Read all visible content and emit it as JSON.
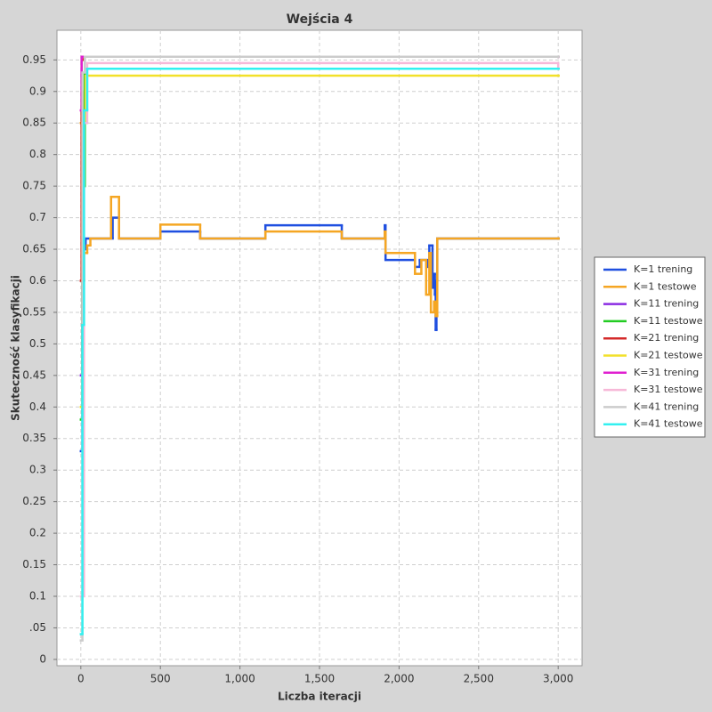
{
  "chart_data": {
    "type": "line",
    "step": true,
    "title": "Wejścia 4",
    "x_label": "Liczba iteracji",
    "y_label": "Skuteczność klasyfikacji",
    "xlim": [
      -150,
      3150
    ],
    "xticks": [
      0,
      500,
      {
        "value": 1000,
        "label": "1,000"
      },
      {
        "value": 1500,
        "label": "1,500"
      },
      {
        "value": 2000,
        "label": "2,000"
      },
      {
        "value": 2500,
        "label": "2,500"
      },
      {
        "value": 3000,
        "label": "3,000"
      }
    ],
    "ylim": [
      -0.01,
      0.997
    ],
    "yticks": [
      0,
      {
        "value": 0.05,
        "label": ".05"
      },
      0.1,
      0.15,
      0.2,
      0.25,
      0.3,
      0.35,
      0.4,
      0.45,
      0.5,
      0.55,
      0.6,
      0.65,
      0.7,
      0.75,
      0.8,
      0.85,
      0.9,
      0.95
    ],
    "grid": true,
    "legend": "right",
    "series": [
      {
        "name": "K=1 trening",
        "color": "#1f4fe0",
        "x": [
          0,
          10,
          20,
          30,
          200,
          240,
          500,
          750,
          1160,
          1640,
          1910,
          1915,
          2100,
          2130,
          2180,
          2190,
          2210,
          2220,
          2225,
          2230,
          2235,
          2240,
          3000
        ],
        "values": [
          0.33,
          0.6,
          0.65,
          0.667,
          0.7,
          0.667,
          0.678,
          0.667,
          0.688,
          0.667,
          0.688,
          0.633,
          0.622,
          0.633,
          0.622,
          0.656,
          0.589,
          0.611,
          0.578,
          0.522,
          0.6,
          0.667,
          0.667
        ]
      },
      {
        "name": "K=1 testowe",
        "color": "#f5a623",
        "x": [
          0,
          5,
          10,
          20,
          40,
          60,
          190,
          240,
          500,
          750,
          1160,
          1640,
          1910,
          1915,
          2100,
          2140,
          2170,
          2190,
          2200,
          2220,
          2230,
          2240,
          3000
        ],
        "values": [
          0.85,
          0.9,
          0.6,
          0.644,
          0.656,
          0.667,
          0.733,
          0.667,
          0.689,
          0.667,
          0.678,
          0.667,
          0.678,
          0.644,
          0.611,
          0.633,
          0.578,
          0.644,
          0.55,
          0.567,
          0.544,
          0.667,
          0.667
        ]
      },
      {
        "name": "K=11 trening",
        "color": "#8a2be2",
        "x": [
          0,
          10,
          25,
          3000
        ],
        "values": [
          0.45,
          0.85,
          0.955,
          0.955
        ]
      },
      {
        "name": "K=11 testowe",
        "color": "#22cc22",
        "x": [
          0,
          10,
          25,
          3000
        ],
        "values": [
          0.38,
          0.75,
          0.936,
          0.936
        ]
      },
      {
        "name": "K=21 trening",
        "color": "#d42a2a",
        "x": [
          0,
          5,
          20,
          3000
        ],
        "values": [
          0.6,
          0.95,
          0.955,
          0.955
        ]
      },
      {
        "name": "K=21 testowe",
        "color": "#f2e12a",
        "x": [
          0,
          10,
          30,
          3000
        ],
        "values": [
          0.4,
          0.85,
          0.925,
          0.925
        ]
      },
      {
        "name": "K=31 trening",
        "color": "#e020d0",
        "x": [
          0,
          5,
          3000
        ],
        "values": [
          0.87,
          0.955,
          0.955
        ]
      },
      {
        "name": "K=31 testowe",
        "color": "#f7b8d8",
        "x": [
          0,
          20,
          40,
          3000
        ],
        "values": [
          0.1,
          0.85,
          0.945,
          0.936
        ]
      },
      {
        "name": "K=41 trening",
        "color": "#cccccc",
        "x": [
          0,
          10,
          25,
          3000
        ],
        "values": [
          0.03,
          0.93,
          0.955,
          0.955
        ]
      },
      {
        "name": "K=41 testowe",
        "color": "#33f0f0",
        "x": [
          0,
          10,
          20,
          40,
          3000
        ],
        "values": [
          0.04,
          0.53,
          0.87,
          0.936,
          0.936
        ]
      }
    ]
  }
}
